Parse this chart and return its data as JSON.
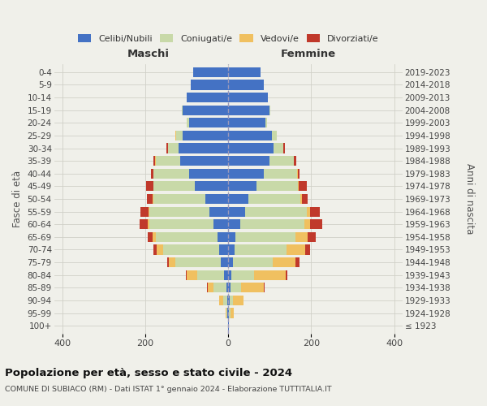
{
  "age_groups": [
    "0-4",
    "5-9",
    "10-14",
    "15-19",
    "20-24",
    "25-29",
    "30-34",
    "35-39",
    "40-44",
    "45-49",
    "50-54",
    "55-59",
    "60-64",
    "65-69",
    "70-74",
    "75-79",
    "80-84",
    "85-89",
    "90-94",
    "95-99",
    "100+"
  ],
  "birth_years": [
    "2019-2023",
    "2014-2018",
    "2009-2013",
    "2004-2008",
    "1999-2003",
    "1994-1998",
    "1989-1993",
    "1984-1988",
    "1979-1983",
    "1974-1978",
    "1969-1973",
    "1964-1968",
    "1959-1963",
    "1954-1958",
    "1949-1953",
    "1944-1948",
    "1939-1943",
    "1934-1938",
    "1929-1933",
    "1924-1928",
    "≤ 1923"
  ],
  "male": {
    "celibi": [
      85,
      90,
      100,
      110,
      95,
      110,
      120,
      115,
      95,
      80,
      55,
      45,
      35,
      25,
      22,
      18,
      10,
      5,
      3,
      2,
      1
    ],
    "coniugati": [
      0,
      0,
      0,
      2,
      5,
      15,
      25,
      60,
      85,
      100,
      125,
      145,
      155,
      150,
      135,
      110,
      65,
      30,
      10,
      3,
      0
    ],
    "vedovi": [
      0,
      0,
      0,
      0,
      0,
      2,
      1,
      1,
      1,
      1,
      2,
      3,
      5,
      8,
      15,
      15,
      25,
      15,
      8,
      2,
      0
    ],
    "divorziati": [
      0,
      0,
      0,
      0,
      0,
      0,
      3,
      5,
      5,
      18,
      15,
      18,
      18,
      12,
      8,
      5,
      3,
      2,
      0,
      0,
      0
    ]
  },
  "female": {
    "nubili": [
      78,
      85,
      95,
      100,
      90,
      105,
      110,
      100,
      85,
      68,
      48,
      40,
      28,
      18,
      15,
      12,
      8,
      5,
      3,
      2,
      1
    ],
    "coniugate": [
      0,
      0,
      0,
      2,
      4,
      12,
      22,
      58,
      80,
      100,
      125,
      150,
      155,
      145,
      125,
      95,
      55,
      25,
      8,
      3,
      0
    ],
    "vedove": [
      0,
      0,
      0,
      0,
      0,
      1,
      1,
      1,
      2,
      2,
      5,
      8,
      15,
      28,
      45,
      55,
      75,
      55,
      25,
      8,
      0
    ],
    "divorziate": [
      0,
      0,
      0,
      0,
      0,
      0,
      3,
      5,
      5,
      20,
      14,
      22,
      28,
      20,
      12,
      10,
      5,
      2,
      0,
      0,
      0
    ]
  },
  "colors": {
    "celibi": "#4472C4",
    "coniugati": "#C8D9A8",
    "vedovi": "#F0C060",
    "divorziati": "#C0392B"
  },
  "xlim": 420,
  "title": "Popolazione per età, sesso e stato civile - 2024",
  "subtitle": "COMUNE DI SUBIACO (RM) - Dati ISTAT 1° gennaio 2024 - Elaborazione TUTTITALIA.IT",
  "ylabel": "Fasce di età",
  "right_ylabel": "Anni di nascita",
  "header_left": "Maschi",
  "header_right": "Femmine",
  "bg_color": "#f0f0ea",
  "grid_color": "#d0d0c8",
  "legend_items": [
    "Celibi/Nubili",
    "Coniugati/e",
    "Vedovi/e",
    "Divorziati/e"
  ]
}
